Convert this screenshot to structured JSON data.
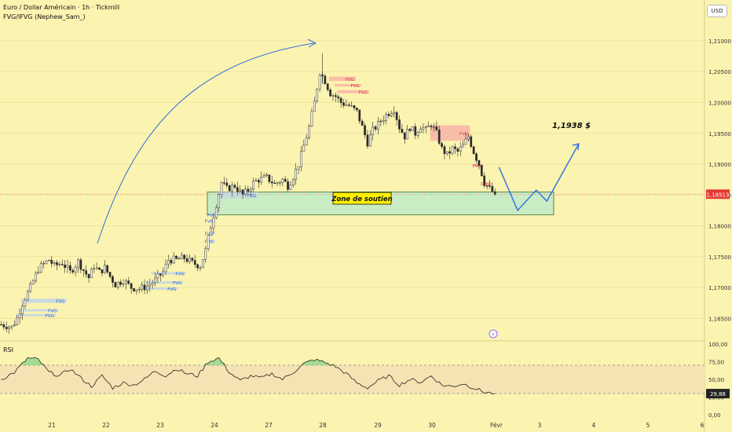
{
  "header": {
    "title": "Euro / Dollar Américain · 1h · Tickmill",
    "indicator": "FVG/IFVG (Nephew_Sam_)"
  },
  "currency_button": "USD",
  "colors": {
    "background": "#fbf3b0",
    "bull": "#26a69a",
    "bear": "#ef5350",
    "candle": "#2b2b2b",
    "support_zone": "#c9ecc4",
    "fvg_bear": "#f7b8a8",
    "fvg_bull": "#c7d9df",
    "arrow": "#2f6fe0",
    "price_badge": "#e53935",
    "rsi_band": "#f5e3b3"
  },
  "chart_data": {
    "type": "candlestick",
    "symbol": "Euro / Dollar Américain",
    "timeframe": "1h",
    "broker": "Tickmill",
    "y_axis": {
      "ticks": [
        "1,21000",
        "1,20500",
        "1,20000",
        "1,19500",
        "1,19000",
        "1,18500",
        "1,18000",
        "1,17500",
        "1,17000",
        "1,16500"
      ],
      "tick_values": [
        1.21,
        1.205,
        1.2,
        1.195,
        1.19,
        1.185,
        1.18,
        1.175,
        1.17,
        1.165
      ],
      "range": [
        1.1616,
        1.2128
      ]
    },
    "x_axis": {
      "ticks": [
        "21",
        "22",
        "23",
        "24",
        "27",
        "28",
        "29",
        "30",
        "Févr",
        "3",
        "4",
        "5",
        "6"
      ],
      "tick_index": [
        0,
        1,
        2,
        3,
        4,
        5,
        6,
        7,
        8,
        9,
        10,
        11,
        12
      ]
    },
    "last_price": "1,18513",
    "last_price_value": 1.18513,
    "price_series_anchors": [
      {
        "i": 0,
        "c": 1.164
      },
      {
        "i": 4,
        "c": 1.1636
      },
      {
        "i": 6,
        "c": 1.165
      },
      {
        "i": 8,
        "c": 1.1675
      },
      {
        "i": 11,
        "c": 1.17
      },
      {
        "i": 14,
        "c": 1.173
      },
      {
        "i": 16,
        "c": 1.1738
      },
      {
        "i": 18,
        "c": 1.1745
      },
      {
        "i": 20,
        "c": 1.1735
      },
      {
        "i": 23,
        "c": 1.174
      },
      {
        "i": 26,
        "c": 1.1725
      },
      {
        "i": 29,
        "c": 1.1742
      },
      {
        "i": 31,
        "c": 1.1728
      },
      {
        "i": 33,
        "c": 1.1716
      },
      {
        "i": 35,
        "c": 1.1735
      },
      {
        "i": 37,
        "c": 1.1725
      },
      {
        "i": 39,
        "c": 1.1732
      },
      {
        "i": 41,
        "c": 1.1718
      },
      {
        "i": 43,
        "c": 1.1705
      },
      {
        "i": 46,
        "c": 1.1712
      },
      {
        "i": 49,
        "c": 1.17
      },
      {
        "i": 52,
        "c": 1.1698
      },
      {
        "i": 55,
        "c": 1.1702
      },
      {
        "i": 58,
        "c": 1.1712
      },
      {
        "i": 61,
        "c": 1.1725
      },
      {
        "i": 63,
        "c": 1.1745
      },
      {
        "i": 66,
        "c": 1.1745
      },
      {
        "i": 69,
        "c": 1.1748
      },
      {
        "i": 72,
        "c": 1.174
      },
      {
        "i": 75,
        "c": 1.1735
      },
      {
        "i": 77,
        "c": 1.176
      },
      {
        "i": 79,
        "c": 1.18
      },
      {
        "i": 81,
        "c": 1.1835
      },
      {
        "i": 83,
        "c": 1.187
      },
      {
        "i": 85,
        "c": 1.186
      },
      {
        "i": 88,
        "c": 1.1865
      },
      {
        "i": 91,
        "c": 1.185
      },
      {
        "i": 93,
        "c": 1.1858
      },
      {
        "i": 95,
        "c": 1.187
      },
      {
        "i": 97,
        "c": 1.1875
      },
      {
        "i": 100,
        "c": 1.1878
      },
      {
        "i": 103,
        "c": 1.1868
      },
      {
        "i": 106,
        "c": 1.1875
      },
      {
        "i": 108,
        "c": 1.1865
      },
      {
        "i": 110,
        "c": 1.188
      },
      {
        "i": 112,
        "c": 1.19
      },
      {
        "i": 114,
        "c": 1.193
      },
      {
        "i": 116,
        "c": 1.196
      },
      {
        "i": 118,
        "c": 1.2
      },
      {
        "i": 120,
        "c": 1.205
      },
      {
        "i": 122,
        "c": 1.2035
      },
      {
        "i": 124,
        "c": 1.2015
      },
      {
        "i": 126,
        "c": 1.201
      },
      {
        "i": 128,
        "c": 1.2
      },
      {
        "i": 131,
        "c": 1.1995
      },
      {
        "i": 134,
        "c": 1.1985
      },
      {
        "i": 136,
        "c": 1.196
      },
      {
        "i": 138,
        "c": 1.1935
      },
      {
        "i": 140,
        "c": 1.1955
      },
      {
        "i": 142,
        "c": 1.1965
      },
      {
        "i": 145,
        "c": 1.198
      },
      {
        "i": 148,
        "c": 1.199
      },
      {
        "i": 150,
        "c": 1.196
      },
      {
        "i": 152,
        "c": 1.1945
      },
      {
        "i": 154,
        "c": 1.196
      },
      {
        "i": 156,
        "c": 1.195
      },
      {
        "i": 158,
        "c": 1.1962
      },
      {
        "i": 160,
        "c": 1.1955
      },
      {
        "i": 162,
        "c": 1.1965
      },
      {
        "i": 164,
        "c": 1.195
      },
      {
        "i": 166,
        "c": 1.1925
      },
      {
        "i": 168,
        "c": 1.1915
      },
      {
        "i": 170,
        "c": 1.1925
      },
      {
        "i": 172,
        "c": 1.192
      },
      {
        "i": 174,
        "c": 1.193
      },
      {
        "i": 176,
        "c": 1.1945
      },
      {
        "i": 178,
        "c": 1.192
      },
      {
        "i": 180,
        "c": 1.19
      },
      {
        "i": 182,
        "c": 1.187
      },
      {
        "i": 184,
        "c": 1.186
      },
      {
        "i": 186,
        "c": 1.1851
      }
    ],
    "annotations": {
      "support_zone": {
        "label": "Zone de soutien",
        "top": 1.1855,
        "bottom": 1.1818
      },
      "target": {
        "label": "1,1938 $",
        "value": 1.1938
      },
      "projection_path": [
        {
          "i": 188,
          "price": 1.1895
        },
        {
          "i": 195,
          "price": 1.1825
        },
        {
          "i": 202,
          "price": 1.1858
        },
        {
          "i": 206,
          "price": 1.184
        },
        {
          "i": 218,
          "price": 1.1933
        }
      ],
      "fvg_bear": [
        {
          "label": "FVG",
          "x1": 124,
          "x2": 134,
          "top": 1.2042,
          "bottom": 1.2035
        },
        {
          "label": "FVG",
          "x1": 126,
          "x2": 136,
          "top": 1.203,
          "bottom": 1.2026
        },
        {
          "label": "FVG",
          "x1": 127,
          "x2": 139,
          "top": 1.202,
          "bottom": 1.2015
        },
        {
          "label": "FVG",
          "x1": 162,
          "x2": 177,
          "top": 1.1963,
          "bottom": 1.1938
        },
        {
          "label": "FVG",
          "x1": 178,
          "x2": 182,
          "top": 1.19,
          "bottom": 1.1896
        },
        {
          "label": "FVG",
          "x1": 182,
          "x2": 185,
          "top": 1.187,
          "bottom": 1.1866
        }
      ],
      "fvg_bull": [
        {
          "label": "FVG",
          "x1": 8,
          "x2": 25,
          "top": 1.1682,
          "bottom": 1.1675
        },
        {
          "label": "FVG",
          "x1": 7,
          "x2": 22,
          "top": 1.1665,
          "bottom": 1.1662
        },
        {
          "label": "FVG",
          "x1": 6,
          "x2": 21,
          "top": 1.1657,
          "bottom": 1.1654
        },
        {
          "label": "FVG",
          "x1": 57,
          "x2": 70,
          "top": 1.1725,
          "bottom": 1.1721
        },
        {
          "label": "FVG",
          "x1": 55,
          "x2": 69,
          "top": 1.171,
          "bottom": 1.1707
        },
        {
          "label": "FVG",
          "x1": 55,
          "x2": 67,
          "top": 1.17,
          "bottom": 1.1697
        },
        {
          "label": "FVG",
          "x1": 82,
          "x2": 97,
          "top": 1.1855,
          "bottom": 1.1845
        },
        {
          "label": "FVG",
          "x1": 79,
          "x2": 82,
          "top": 1.182,
          "bottom": 1.1816
        },
        {
          "label": "FVG",
          "x1": 79,
          "x2": 81,
          "top": 1.181,
          "bottom": 1.1807
        },
        {
          "label": "FVG",
          "x1": 79,
          "x2": 81,
          "top": 1.179,
          "bottom": 1.1787
        },
        {
          "label": "FVG",
          "x1": 79,
          "x2": 81,
          "top": 1.1777,
          "bottom": 1.1774
        }
      ]
    },
    "rsi": {
      "title": "RSI",
      "ticks": [
        "100,00",
        "75,00",
        "50,00",
        "25,00",
        "0,00"
      ],
      "tick_values": [
        100,
        75,
        50,
        25,
        0
      ],
      "band": [
        30,
        70
      ],
      "last_value": "29,88",
      "last_value_num": 29.88,
      "anchors": [
        {
          "i": 0,
          "v": 50
        },
        {
          "i": 5,
          "v": 60
        },
        {
          "i": 10,
          "v": 80
        },
        {
          "i": 14,
          "v": 78
        },
        {
          "i": 18,
          "v": 60
        },
        {
          "i": 22,
          "v": 55
        },
        {
          "i": 26,
          "v": 65
        },
        {
          "i": 30,
          "v": 52
        },
        {
          "i": 34,
          "v": 40
        },
        {
          "i": 38,
          "v": 55
        },
        {
          "i": 42,
          "v": 38
        },
        {
          "i": 46,
          "v": 45
        },
        {
          "i": 50,
          "v": 42
        },
        {
          "i": 54,
          "v": 50
        },
        {
          "i": 58,
          "v": 62
        },
        {
          "i": 62,
          "v": 55
        },
        {
          "i": 66,
          "v": 65
        },
        {
          "i": 70,
          "v": 58
        },
        {
          "i": 74,
          "v": 55
        },
        {
          "i": 78,
          "v": 75
        },
        {
          "i": 82,
          "v": 80
        },
        {
          "i": 86,
          "v": 60
        },
        {
          "i": 90,
          "v": 48
        },
        {
          "i": 94,
          "v": 55
        },
        {
          "i": 98,
          "v": 52
        },
        {
          "i": 102,
          "v": 58
        },
        {
          "i": 106,
          "v": 50
        },
        {
          "i": 110,
          "v": 60
        },
        {
          "i": 114,
          "v": 72
        },
        {
          "i": 118,
          "v": 78
        },
        {
          "i": 122,
          "v": 74
        },
        {
          "i": 126,
          "v": 68
        },
        {
          "i": 130,
          "v": 58
        },
        {
          "i": 134,
          "v": 45
        },
        {
          "i": 138,
          "v": 38
        },
        {
          "i": 142,
          "v": 48
        },
        {
          "i": 146,
          "v": 55
        },
        {
          "i": 150,
          "v": 42
        },
        {
          "i": 154,
          "v": 50
        },
        {
          "i": 158,
          "v": 46
        },
        {
          "i": 162,
          "v": 55
        },
        {
          "i": 166,
          "v": 42
        },
        {
          "i": 170,
          "v": 40
        },
        {
          "i": 174,
          "v": 44
        },
        {
          "i": 178,
          "v": 38
        },
        {
          "i": 182,
          "v": 32
        },
        {
          "i": 186,
          "v": 29.88
        }
      ]
    }
  }
}
